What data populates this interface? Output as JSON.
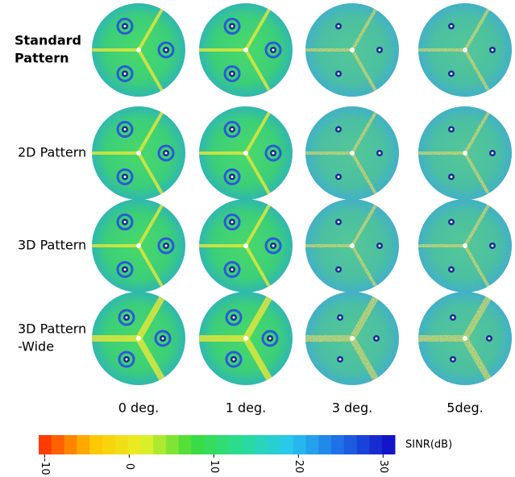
{
  "rows": [
    [
      "Standard",
      "Pattern"
    ],
    [
      "2D Pattern"
    ],
    [
      "3D Pattern"
    ],
    [
      "3D Pattern",
      "-Wide"
    ]
  ],
  "columns": [
    "0 deg.",
    "1 deg.",
    "3 deg.",
    "5deg."
  ],
  "colorbar": {
    "label": "SINR(dB)",
    "lim": [
      -10.7,
      31.4
    ],
    "ticks": [
      -10,
      0,
      10,
      20,
      30
    ]
  }
}
